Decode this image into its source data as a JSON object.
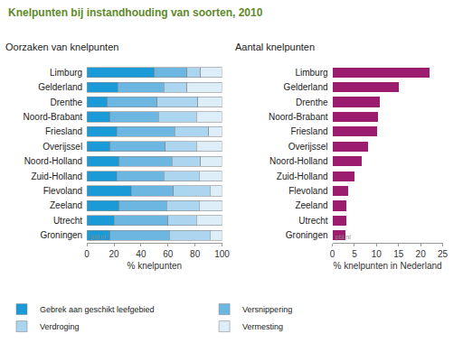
{
  "title": "Knelpunten bij instandhouding van soorten, 2010",
  "chart_data": [
    {
      "type": "bar",
      "subtitle": "Oorzaken van knelpunten",
      "orientation": "horizontal",
      "stacked": true,
      "grid": false,
      "legend": "bottom",
      "xlabel": "% knelpunten",
      "annotations": [
        "pbl.nl"
      ],
      "categories": [
        "Limburg",
        "Gelderland",
        "Drenthe",
        "Noord-Brabant",
        "Friesland",
        "Overijssel",
        "Noord-Holland",
        "Zuid-Holland",
        "Flevoland",
        "Zeeland",
        "Utrecht",
        "Groningen"
      ],
      "series": [
        {
          "name": "Gebrek aan geschikt leefgebied",
          "color": "#1a9ad6",
          "values": [
            50,
            23,
            15,
            17,
            22,
            17,
            24,
            22,
            33,
            24,
            20,
            17
          ]
        },
        {
          "name": "Versnippering",
          "color": "#6cb6e2",
          "values": [
            24,
            34,
            37,
            36,
            43,
            41,
            39,
            35,
            31,
            35,
            40,
            44
          ]
        },
        {
          "name": "Verdroging",
          "color": "#acd5f0",
          "values": [
            10,
            17,
            30,
            28,
            25,
            23,
            21,
            26,
            27,
            24,
            21,
            30
          ]
        },
        {
          "name": "Vermesting",
          "color": "#deeef9",
          "values": [
            16,
            26,
            18,
            19,
            10,
            19,
            16,
            17,
            9,
            17,
            19,
            9
          ]
        }
      ],
      "xlim": [
        0,
        100
      ],
      "xticks": [
        0,
        20,
        40,
        60,
        80,
        100
      ]
    },
    {
      "type": "bar",
      "subtitle": "Aantal knelpunten",
      "orientation": "horizontal",
      "grid": false,
      "xlabel": "% knelpunten in Nederland",
      "annotations": [
        "pbl.nl"
      ],
      "color": "#9c1c6f",
      "categories": [
        "Limburg",
        "Gelderland",
        "Drenthe",
        "Noord-Brabant",
        "Friesland",
        "Overijssel",
        "Noord-Holland",
        "Zuid-Holland",
        "Flevoland",
        "Zeeland",
        "Utrecht",
        "Groningen"
      ],
      "values": [
        22,
        15,
        10.7,
        10.3,
        10.1,
        8,
        6.7,
        5,
        3.5,
        3.2,
        3.1,
        3
      ],
      "xlim": [
        0,
        25
      ],
      "xticks": [
        0,
        5,
        10,
        15,
        20,
        25
      ]
    }
  ]
}
